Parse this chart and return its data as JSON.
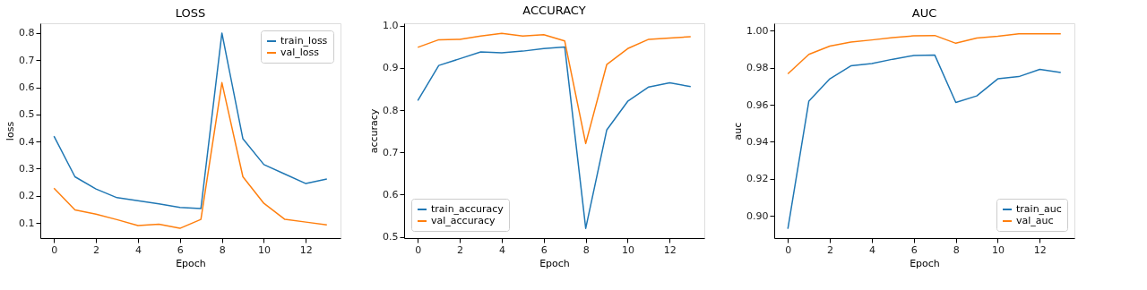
{
  "chart_data": [
    {
      "type": "line",
      "title": "LOSS",
      "xlabel": "Epoch",
      "ylabel": "loss",
      "x": [
        0,
        1,
        2,
        3,
        4,
        5,
        6,
        7,
        8,
        9,
        10,
        11,
        12,
        13
      ],
      "xlim": [
        -0.65,
        13.65
      ],
      "xticks": [
        0,
        2,
        4,
        6,
        8,
        10,
        12
      ],
      "ylim": [
        0.044,
        0.836
      ],
      "yticks": [
        0.1,
        0.2,
        0.3,
        0.4,
        0.5,
        0.6,
        0.7,
        0.8
      ],
      "grid": false,
      "legend": "top right",
      "line_style": "solid",
      "series": [
        {
          "name": "train_loss",
          "color": "#1f77b4",
          "values": [
            0.42,
            0.27,
            0.225,
            0.193,
            0.182,
            0.17,
            0.157,
            0.153,
            0.8,
            0.41,
            0.315,
            0.28,
            0.245,
            0.262
          ]
        },
        {
          "name": "val_loss",
          "color": "#ff7f0e",
          "values": [
            0.228,
            0.148,
            0.132,
            0.112,
            0.09,
            0.095,
            0.08,
            0.113,
            0.617,
            0.27,
            0.172,
            0.113,
            0.103,
            0.093
          ]
        }
      ]
    },
    {
      "type": "line",
      "title": "ACCURACY",
      "xlabel": "Epoch",
      "ylabel": "accuracy",
      "x": [
        0,
        1,
        2,
        3,
        4,
        5,
        6,
        7,
        8,
        9,
        10,
        11,
        12,
        13
      ],
      "xlim": [
        -0.65,
        13.65
      ],
      "xticks": [
        0,
        2,
        4,
        6,
        8,
        10,
        12
      ],
      "ylim": [
        0.497,
        1.006
      ],
      "yticks": [
        0.5,
        0.6,
        0.7,
        0.8,
        0.9,
        {
          "value": 1.0,
          "label": "1.0"
        }
      ],
      "grid": false,
      "legend": "bottom left",
      "line_style": "solid",
      "series": [
        {
          "name": "train_accuracy",
          "color": "#1f77b4",
          "values": [
            0.823,
            0.906,
            0.922,
            0.938,
            0.936,
            0.94,
            0.946,
            0.95,
            0.52,
            0.753,
            0.821,
            0.855,
            0.865,
            0.856
          ]
        },
        {
          "name": "val_accuracy",
          "color": "#ff7f0e",
          "values": [
            0.949,
            0.967,
            0.968,
            0.976,
            0.982,
            0.976,
            0.979,
            0.964,
            0.721,
            0.908,
            0.946,
            0.968,
            0.971,
            0.974
          ]
        }
      ]
    },
    {
      "type": "line",
      "title": "AUC",
      "xlabel": "Epoch",
      "ylabel": "auc",
      "x": [
        0,
        1,
        2,
        3,
        4,
        5,
        6,
        7,
        8,
        9,
        10,
        11,
        12,
        13
      ],
      "xlim": [
        -0.65,
        13.65
      ],
      "xticks": [
        0,
        2,
        4,
        6,
        8,
        10,
        12
      ],
      "ylim": [
        0.888,
        1.004
      ],
      "yticks": [
        {
          "value": 0.9,
          "label": "0.90"
        },
        {
          "value": 0.92,
          "label": "0.92"
        },
        {
          "value": 0.94,
          "label": "0.94"
        },
        {
          "value": 0.96,
          "label": "0.96"
        },
        {
          "value": 0.98,
          "label": "0.98"
        },
        {
          "value": 1.0,
          "label": "1.00"
        }
      ],
      "grid": false,
      "legend": "bottom right",
      "line_style": "solid",
      "series": [
        {
          "name": "train_auc",
          "color": "#1f77b4",
          "values": [
            0.893,
            0.962,
            0.974,
            0.981,
            0.9822,
            0.9846,
            0.9866,
            0.9868,
            0.9612,
            0.9648,
            0.974,
            0.9752,
            0.9791,
            0.9774
          ]
        },
        {
          "name": "val_auc",
          "color": "#ff7f0e",
          "values": [
            0.9767,
            0.9872,
            0.9917,
            0.9938,
            0.995,
            0.9963,
            0.9972,
            0.9974,
            0.9932,
            0.996,
            0.997,
            0.9983,
            0.9983,
            0.9983
          ]
        }
      ]
    }
  ]
}
